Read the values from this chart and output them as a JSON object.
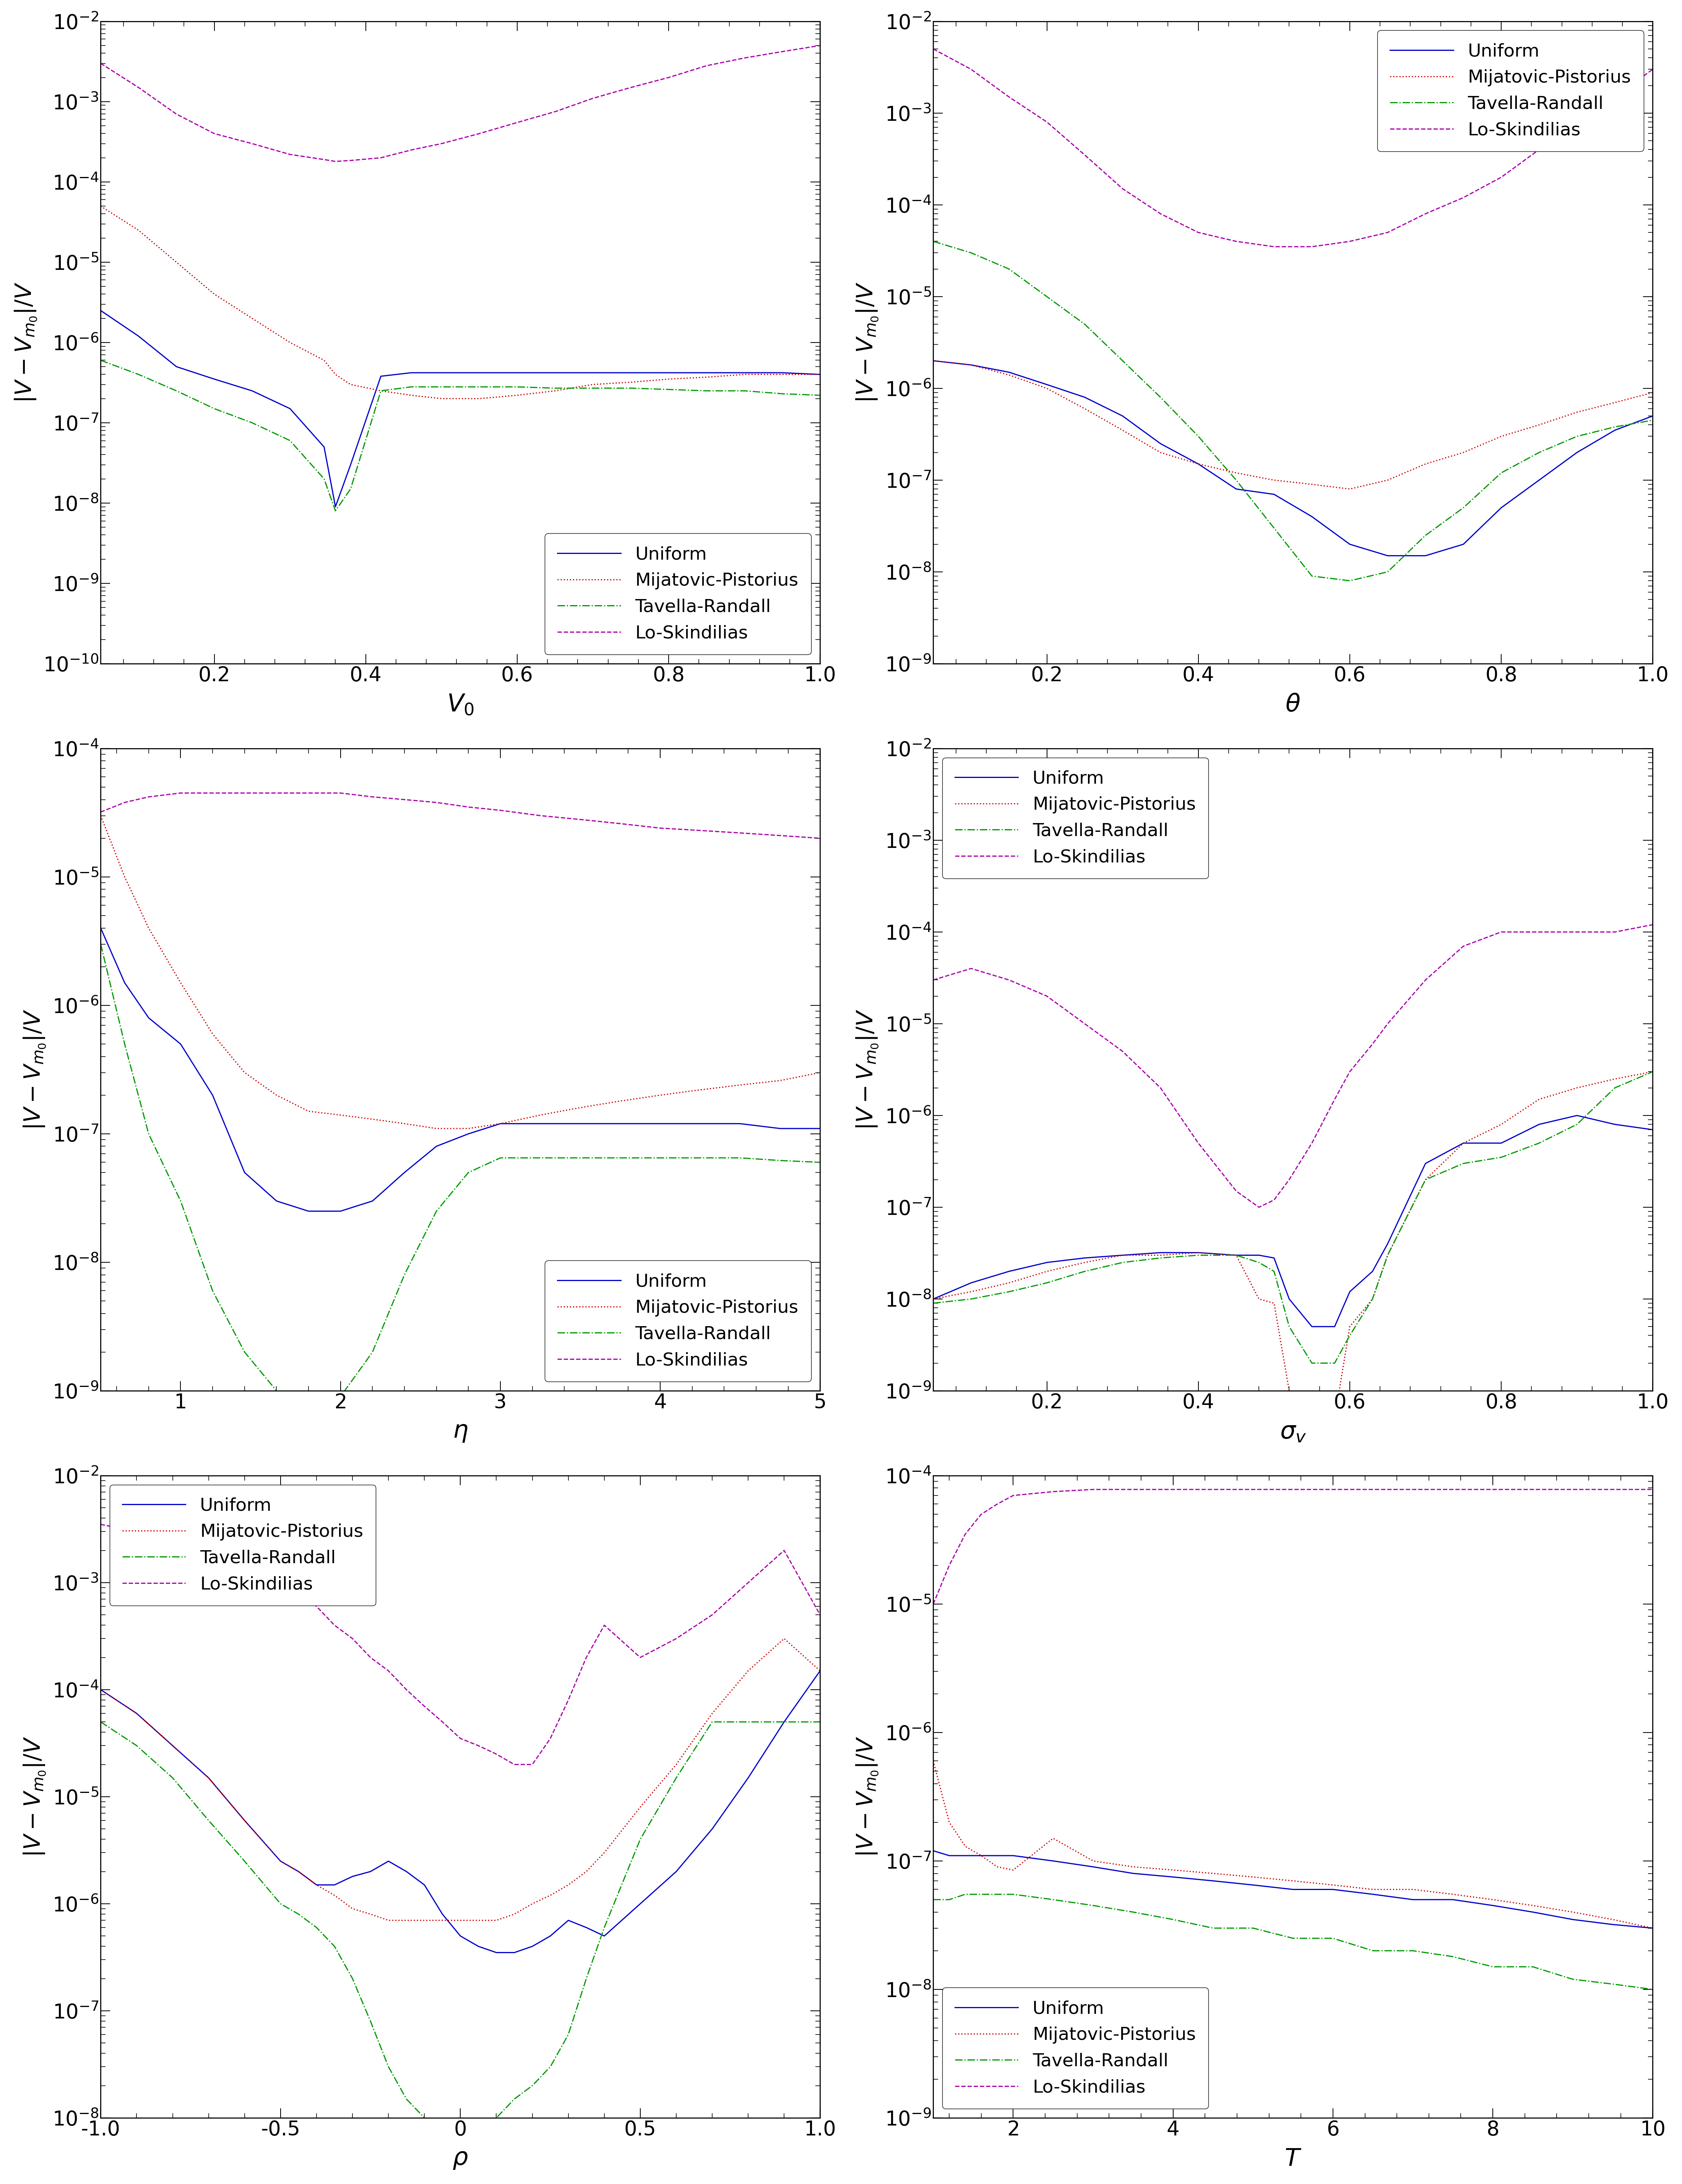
{
  "legend_labels": [
    "Uniform",
    "Mijatovic-Pistorius",
    "Tavella-Randall",
    "Lo-Skindilias"
  ],
  "line_styles": [
    {
      "color": "#0000CD",
      "linestyle": "-",
      "linewidth": 2.2
    },
    {
      "color": "#CC0000",
      "linestyle": ":",
      "linewidth": 2.2
    },
    {
      "color": "#009900",
      "linestyle": "-.",
      "linewidth": 2.2
    },
    {
      "color": "#AA00AA",
      "linestyle": "--",
      "linewidth": 2.2
    }
  ],
  "plots": [
    {
      "xlabel": "V_0",
      "xlim": [
        0.05,
        1.0
      ],
      "ylim": [
        1e-10,
        0.01
      ],
      "xticks": [
        0.2,
        0.4,
        0.6,
        0.8,
        1.0
      ],
      "xticklabels": [
        "0.2",
        "0.4",
        "0.6",
        "0.8",
        "1.0"
      ],
      "legend_loc": "lower right",
      "data": {
        "x": [
          0.05,
          0.1,
          0.15,
          0.2,
          0.25,
          0.3,
          0.345,
          0.36,
          0.38,
          0.42,
          0.46,
          0.5,
          0.55,
          0.6,
          0.65,
          0.7,
          0.75,
          0.8,
          0.85,
          0.9,
          0.95,
          1.0
        ],
        "uniform": [
          2.5e-06,
          1.2e-06,
          5e-07,
          3.5e-07,
          2.5e-07,
          1.5e-07,
          5e-08,
          9e-09,
          3e-08,
          3.8e-07,
          4.2e-07,
          4.2e-07,
          4.2e-07,
          4.2e-07,
          4.2e-07,
          4.2e-07,
          4.2e-07,
          4.2e-07,
          4.2e-07,
          4.2e-07,
          4.2e-07,
          4e-07
        ],
        "mijatovic": [
          5e-05,
          2.5e-05,
          1e-05,
          4e-06,
          2e-06,
          1e-06,
          6e-07,
          4e-07,
          3e-07,
          2.5e-07,
          2.2e-07,
          2e-07,
          2e-07,
          2.2e-07,
          2.5e-07,
          3e-07,
          3.2e-07,
          3.5e-07,
          3.7e-07,
          4e-07,
          4e-07,
          4e-07
        ],
        "tavella": [
          6e-07,
          4e-07,
          2.5e-07,
          1.5e-07,
          1e-07,
          6e-08,
          2e-08,
          8e-09,
          1.5e-08,
          2.5e-07,
          2.8e-07,
          2.8e-07,
          2.8e-07,
          2.8e-07,
          2.7e-07,
          2.7e-07,
          2.7e-07,
          2.6e-07,
          2.5e-07,
          2.5e-07,
          2.3e-07,
          2.2e-07
        ],
        "lo": [
          0.003,
          0.0015,
          0.0007,
          0.0004,
          0.0003,
          0.00022,
          0.00019,
          0.00018,
          0.000185,
          0.0002,
          0.00025,
          0.0003,
          0.0004,
          0.00055,
          0.00075,
          0.0011,
          0.0015,
          0.002,
          0.0028,
          0.0035,
          0.0042,
          0.005
        ]
      }
    },
    {
      "xlabel": "\\theta",
      "xlim": [
        0.05,
        1.0
      ],
      "ylim": [
        1e-09,
        0.01
      ],
      "xticks": [
        0.2,
        0.4,
        0.6,
        0.8,
        1.0
      ],
      "xticklabels": [
        "0.2",
        "0.4",
        "0.6",
        "0.8",
        "1.0"
      ],
      "legend_loc": "upper right",
      "data": {
        "x": [
          0.05,
          0.1,
          0.15,
          0.2,
          0.25,
          0.3,
          0.35,
          0.4,
          0.45,
          0.5,
          0.55,
          0.6,
          0.65,
          0.7,
          0.75,
          0.8,
          0.85,
          0.9,
          0.95,
          1.0
        ],
        "uniform": [
          2e-06,
          1.8e-06,
          1.5e-06,
          1.1e-06,
          8e-07,
          5e-07,
          2.5e-07,
          1.5e-07,
          8e-08,
          7e-08,
          4e-08,
          2e-08,
          1.5e-08,
          1.5e-08,
          2e-08,
          5e-08,
          1e-07,
          2e-07,
          3.5e-07,
          5e-07
        ],
        "mijatovic": [
          2e-06,
          1.8e-06,
          1.4e-06,
          1e-06,
          6e-07,
          3.5e-07,
          2e-07,
          1.5e-07,
          1.2e-07,
          1e-07,
          9e-08,
          8e-08,
          1e-07,
          1.5e-07,
          2e-07,
          3e-07,
          4e-07,
          5.5e-07,
          7e-07,
          9e-07
        ],
        "tavella": [
          4e-05,
          3e-05,
          2e-05,
          1e-05,
          5e-06,
          2e-06,
          8e-07,
          3e-07,
          1e-07,
          3e-08,
          9e-09,
          8e-09,
          1e-08,
          2.5e-08,
          5e-08,
          1.2e-07,
          2e-07,
          3e-07,
          3.8e-07,
          4.5e-07
        ],
        "lo": [
          0.005,
          0.003,
          0.0015,
          0.0008,
          0.00035,
          0.00015,
          8e-05,
          5e-05,
          4e-05,
          3.5e-05,
          3.5e-05,
          4e-05,
          5e-05,
          8e-05,
          0.00012,
          0.0002,
          0.0004,
          0.0008,
          0.0015,
          0.003
        ]
      }
    },
    {
      "xlabel": "\\eta",
      "xlim": [
        0.5,
        5.0
      ],
      "ylim": [
        1e-09,
        0.0001
      ],
      "xticks": [
        1,
        2,
        3,
        4,
        5
      ],
      "xticklabels": [
        "1",
        "2",
        "3",
        "4",
        "5"
      ],
      "legend_loc": "lower right",
      "data": {
        "x": [
          0.5,
          0.65,
          0.8,
          1.0,
          1.2,
          1.4,
          1.6,
          1.8,
          2.0,
          2.2,
          2.4,
          2.6,
          2.8,
          3.0,
          3.25,
          3.5,
          3.75,
          4.0,
          4.25,
          4.5,
          4.75,
          5.0
        ],
        "uniform": [
          4e-06,
          1.5e-06,
          8e-07,
          5e-07,
          2e-07,
          5e-08,
          3e-08,
          2.5e-08,
          2.5e-08,
          3e-08,
          5e-08,
          8e-08,
          1e-07,
          1.2e-07,
          1.2e-07,
          1.2e-07,
          1.2e-07,
          1.2e-07,
          1.2e-07,
          1.2e-07,
          1.1e-07,
          1.1e-07
        ],
        "mijatovic": [
          3e-05,
          1e-05,
          4e-06,
          1.5e-06,
          6e-07,
          3e-07,
          2e-07,
          1.5e-07,
          1.4e-07,
          1.3e-07,
          1.2e-07,
          1.1e-07,
          1.1e-07,
          1.2e-07,
          1.4e-07,
          1.6e-07,
          1.8e-07,
          2e-07,
          2.2e-07,
          2.4e-07,
          2.6e-07,
          3e-07
        ],
        "tavella": [
          3e-06,
          5e-07,
          1e-07,
          3e-08,
          6e-09,
          2e-09,
          1e-09,
          8e-10,
          9e-10,
          2e-09,
          8e-09,
          2.5e-08,
          5e-08,
          6.5e-08,
          6.5e-08,
          6.5e-08,
          6.5e-08,
          6.5e-08,
          6.5e-08,
          6.5e-08,
          6.2e-08,
          6e-08
        ],
        "lo": [
          3.2e-05,
          3.8e-05,
          4.2e-05,
          4.5e-05,
          4.5e-05,
          4.5e-05,
          4.5e-05,
          4.5e-05,
          4.5e-05,
          4.2e-05,
          4e-05,
          3.8e-05,
          3.5e-05,
          3.3e-05,
          3e-05,
          2.8e-05,
          2.6e-05,
          2.4e-05,
          2.3e-05,
          2.2e-05,
          2.1e-05,
          2e-05
        ]
      }
    },
    {
      "xlabel": "\\sigma_v",
      "xlim": [
        0.05,
        1.0
      ],
      "ylim": [
        1e-09,
        0.01
      ],
      "xticks": [
        0.2,
        0.4,
        0.6,
        0.8,
        1.0
      ],
      "xticklabels": [
        "0.2",
        "0.4",
        "0.6",
        "0.8",
        "1.0"
      ],
      "legend_loc": "upper left",
      "data": {
        "x": [
          0.05,
          0.1,
          0.15,
          0.2,
          0.25,
          0.3,
          0.35,
          0.4,
          0.45,
          0.48,
          0.5,
          0.52,
          0.55,
          0.58,
          0.6,
          0.63,
          0.65,
          0.7,
          0.75,
          0.8,
          0.85,
          0.9,
          0.95,
          1.0
        ],
        "uniform": [
          1e-08,
          1.5e-08,
          2e-08,
          2.5e-08,
          2.8e-08,
          3e-08,
          3.2e-08,
          3.2e-08,
          3e-08,
          3e-08,
          2.8e-08,
          1e-08,
          5e-09,
          5e-09,
          1.2e-08,
          2e-08,
          4e-08,
          3e-07,
          5e-07,
          5e-07,
          8e-07,
          1e-06,
          8e-07,
          7e-07
        ],
        "mijatovic": [
          1e-08,
          1.2e-08,
          1.5e-08,
          2e-08,
          2.5e-08,
          3e-08,
          3e-08,
          3.2e-08,
          3e-08,
          1e-08,
          9e-09,
          1e-09,
          5e-10,
          5e-10,
          5e-09,
          1e-08,
          3e-08,
          2e-07,
          5e-07,
          8e-07,
          1.5e-06,
          2e-06,
          2.5e-06,
          3e-06
        ],
        "tavella": [
          9e-09,
          1e-08,
          1.2e-08,
          1.5e-08,
          2e-08,
          2.5e-08,
          2.8e-08,
          3e-08,
          3e-08,
          2.5e-08,
          2e-08,
          5e-09,
          2e-09,
          2e-09,
          4e-09,
          1e-08,
          3e-08,
          2e-07,
          3e-07,
          3.5e-07,
          5e-07,
          8e-07,
          2e-06,
          3e-06
        ],
        "lo": [
          3e-05,
          4e-05,
          3e-05,
          2e-05,
          1e-05,
          5e-06,
          2e-06,
          5e-07,
          1.5e-07,
          1e-07,
          1.2e-07,
          2e-07,
          5e-07,
          1.5e-06,
          3e-06,
          6e-06,
          1e-05,
          3e-05,
          7e-05,
          0.0001,
          0.0001,
          0.0001,
          0.0001,
          0.00012
        ]
      }
    },
    {
      "xlabel": "\\rho",
      "xlim": [
        -1.0,
        1.0
      ],
      "ylim": [
        1e-08,
        0.01
      ],
      "xticks": [
        -1.0,
        -0.5,
        0.0,
        0.5,
        1.0
      ],
      "xticklabels": [
        "-1.0",
        "-0.5",
        "0",
        "0.5",
        "1.0"
      ],
      "legend_loc": "upper left",
      "data": {
        "x": [
          -1.0,
          -0.9,
          -0.8,
          -0.7,
          -0.6,
          -0.5,
          -0.45,
          -0.4,
          -0.35,
          -0.3,
          -0.25,
          -0.2,
          -0.15,
          -0.1,
          -0.05,
          0.0,
          0.05,
          0.1,
          0.15,
          0.2,
          0.25,
          0.3,
          0.35,
          0.4,
          0.5,
          0.6,
          0.7,
          0.8,
          0.9,
          1.0
        ],
        "uniform": [
          0.0001,
          6e-05,
          3e-05,
          1.5e-05,
          6e-06,
          2.5e-06,
          2e-06,
          1.5e-06,
          1.5e-06,
          1.8e-06,
          2e-06,
          2.5e-06,
          2e-06,
          1.5e-06,
          8e-07,
          5e-07,
          4e-07,
          3.5e-07,
          3.5e-07,
          4e-07,
          5e-07,
          7e-07,
          6e-07,
          5e-07,
          1e-06,
          2e-06,
          5e-06,
          1.5e-05,
          5e-05,
          0.00015
        ],
        "mijatovic": [
          0.0001,
          6e-05,
          3e-05,
          1.5e-05,
          6e-06,
          2.5e-06,
          2e-06,
          1.5e-06,
          1.2e-06,
          9e-07,
          8e-07,
          7e-07,
          7e-07,
          7e-07,
          7e-07,
          7e-07,
          7e-07,
          7e-07,
          8e-07,
          1e-06,
          1.2e-06,
          1.5e-06,
          2e-06,
          3e-06,
          8e-06,
          2e-05,
          6e-05,
          0.00015,
          0.0003,
          0.00015
        ],
        "tavella": [
          5e-05,
          3e-05,
          1.5e-05,
          6e-06,
          2.5e-06,
          1e-06,
          8e-07,
          6e-07,
          4e-07,
          2e-07,
          8e-08,
          3e-08,
          1.5e-08,
          1e-08,
          5e-09,
          3e-09,
          5e-09,
          1e-08,
          1.5e-08,
          2e-08,
          3e-08,
          6e-08,
          2e-07,
          6e-07,
          4e-06,
          1.5e-05,
          5e-05,
          5e-05,
          5e-05,
          5e-05
        ],
        "lo": [
          0.0035,
          0.003,
          0.0025,
          0.002,
          0.0015,
          0.001,
          0.0008,
          0.0006,
          0.0004,
          0.0003,
          0.0002,
          0.00015,
          0.0001,
          7e-05,
          5e-05,
          3.5e-05,
          3e-05,
          2.5e-05,
          2e-05,
          2e-05,
          3.5e-05,
          8e-05,
          0.0002,
          0.0004,
          0.0002,
          0.0003,
          0.0005,
          0.001,
          0.002,
          0.0005
        ]
      }
    },
    {
      "xlabel": "T",
      "xlim": [
        1.0,
        10.0
      ],
      "ylim": [
        1e-09,
        0.0001
      ],
      "xticks": [
        2,
        4,
        6,
        8,
        10
      ],
      "xticklabels": [
        "2",
        "4",
        "6",
        "8",
        "10"
      ],
      "legend_loc": "lower left",
      "data": {
        "x": [
          1.0,
          1.2,
          1.4,
          1.6,
          1.8,
          2.0,
          2.5,
          3.0,
          3.5,
          4.0,
          4.5,
          5.0,
          5.5,
          6.0,
          6.5,
          7.0,
          7.5,
          8.0,
          8.5,
          9.0,
          9.5,
          10.0
        ],
        "uniform": [
          1.2e-07,
          1.1e-07,
          1.1e-07,
          1.1e-07,
          1.1e-07,
          1.1e-07,
          1e-07,
          9e-08,
          8e-08,
          7.5e-08,
          7e-08,
          6.5e-08,
          6e-08,
          6e-08,
          5.5e-08,
          5e-08,
          5e-08,
          4.5e-08,
          4e-08,
          3.5e-08,
          3.2e-08,
          3e-08
        ],
        "mijatovic": [
          6e-07,
          2e-07,
          1.3e-07,
          1.1e-07,
          9e-08,
          8.5e-08,
          1.5e-07,
          1e-07,
          9e-08,
          8.5e-08,
          8e-08,
          7.5e-08,
          7e-08,
          6.5e-08,
          6e-08,
          6e-08,
          5.5e-08,
          5e-08,
          4.5e-08,
          4e-08,
          3.5e-08,
          3e-08
        ],
        "tavella": [
          5e-08,
          5e-08,
          5.5e-08,
          5.5e-08,
          5.5e-08,
          5.5e-08,
          5e-08,
          4.5e-08,
          4e-08,
          3.5e-08,
          3e-08,
          3e-08,
          2.5e-08,
          2.5e-08,
          2e-08,
          2e-08,
          1.8e-08,
          1.5e-08,
          1.5e-08,
          1.2e-08,
          1.1e-08,
          1e-08
        ],
        "lo": [
          1e-05,
          2e-05,
          3.5e-05,
          5e-05,
          6e-05,
          7e-05,
          7.5e-05,
          7.8e-05,
          7.8e-05,
          7.8e-05,
          7.8e-05,
          7.8e-05,
          7.8e-05,
          7.8e-05,
          7.8e-05,
          7.8e-05,
          7.8e-05,
          7.8e-05,
          7.8e-05,
          7.8e-05,
          7.8e-05,
          7.8e-05
        ]
      }
    }
  ]
}
